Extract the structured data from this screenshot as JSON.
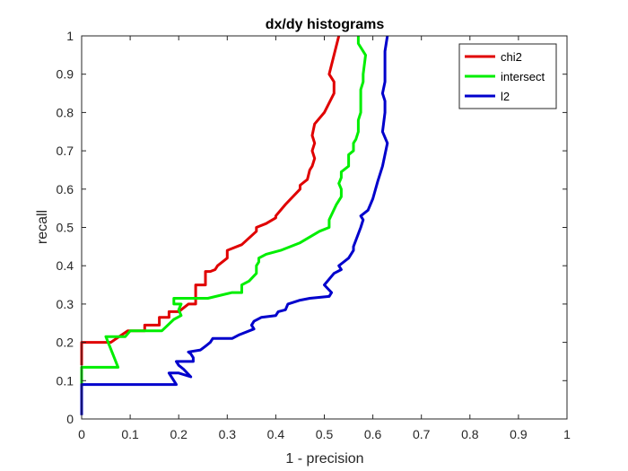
{
  "chart_data": {
    "type": "line",
    "title": "dx/dy histograms",
    "xlabel": "1 - precision",
    "ylabel": "recall",
    "xlim": [
      0,
      1
    ],
    "ylim": [
      0,
      1
    ],
    "xticks": [
      0,
      0.1,
      0.2,
      0.3,
      0.4,
      0.5,
      0.6,
      0.7,
      0.8,
      0.9,
      1
    ],
    "yticks": [
      0,
      0.1,
      0.2,
      0.3,
      0.4,
      0.5,
      0.6,
      0.7,
      0.8,
      0.9,
      1
    ],
    "xtick_labels": [
      "0",
      "0.1",
      "0.2",
      "0.3",
      "0.4",
      "0.5",
      "0.6",
      "0.7",
      "0.8",
      "0.9",
      "1"
    ],
    "ytick_labels": [
      "0",
      "0.1",
      "0.2",
      "0.3",
      "0.4",
      "0.5",
      "0.6",
      "0.7",
      "0.8",
      "0.9",
      "1"
    ],
    "grid": false,
    "legend_position": "top-right",
    "series": [
      {
        "name": "chi2",
        "color": "#e00000",
        "points": [
          [
            0,
            0.14
          ],
          [
            0,
            0.2
          ],
          [
            0.06,
            0.2
          ],
          [
            0.095,
            0.23
          ],
          [
            0.13,
            0.23
          ],
          [
            0.13,
            0.245
          ],
          [
            0.16,
            0.245
          ],
          [
            0.16,
            0.265
          ],
          [
            0.18,
            0.265
          ],
          [
            0.18,
            0.28
          ],
          [
            0.2,
            0.28
          ],
          [
            0.22,
            0.3
          ],
          [
            0.235,
            0.3
          ],
          [
            0.235,
            0.35
          ],
          [
            0.255,
            0.35
          ],
          [
            0.255,
            0.385
          ],
          [
            0.265,
            0.385
          ],
          [
            0.275,
            0.39
          ],
          [
            0.28,
            0.4
          ],
          [
            0.3,
            0.42
          ],
          [
            0.3,
            0.44
          ],
          [
            0.33,
            0.455
          ],
          [
            0.36,
            0.49
          ],
          [
            0.36,
            0.5
          ],
          [
            0.38,
            0.51
          ],
          [
            0.4,
            0.525
          ],
          [
            0.4,
            0.53
          ],
          [
            0.42,
            0.56
          ],
          [
            0.45,
            0.6
          ],
          [
            0.45,
            0.61
          ],
          [
            0.465,
            0.625
          ],
          [
            0.47,
            0.65
          ],
          [
            0.475,
            0.66
          ],
          [
            0.48,
            0.68
          ],
          [
            0.475,
            0.7
          ],
          [
            0.48,
            0.72
          ],
          [
            0.475,
            0.74
          ],
          [
            0.48,
            0.77
          ],
          [
            0.5,
            0.8
          ],
          [
            0.52,
            0.85
          ],
          [
            0.52,
            0.88
          ],
          [
            0.51,
            0.9
          ],
          [
            0.52,
            0.95
          ],
          [
            0.53,
            1.0
          ]
        ]
      },
      {
        "name": "intersect",
        "color": "#00ee00",
        "points": [
          [
            0,
            0.09
          ],
          [
            0,
            0.135
          ],
          [
            0.075,
            0.135
          ],
          [
            0.05,
            0.215
          ],
          [
            0.09,
            0.215
          ],
          [
            0.1,
            0.23
          ],
          [
            0.165,
            0.23
          ],
          [
            0.19,
            0.26
          ],
          [
            0.205,
            0.27
          ],
          [
            0.2,
            0.285
          ],
          [
            0.205,
            0.3
          ],
          [
            0.19,
            0.3
          ],
          [
            0.19,
            0.315
          ],
          [
            0.26,
            0.315
          ],
          [
            0.31,
            0.33
          ],
          [
            0.33,
            0.33
          ],
          [
            0.33,
            0.35
          ],
          [
            0.345,
            0.36
          ],
          [
            0.36,
            0.38
          ],
          [
            0.36,
            0.4
          ],
          [
            0.365,
            0.41
          ],
          [
            0.365,
            0.42
          ],
          [
            0.38,
            0.43
          ],
          [
            0.41,
            0.44
          ],
          [
            0.45,
            0.46
          ],
          [
            0.49,
            0.49
          ],
          [
            0.51,
            0.5
          ],
          [
            0.51,
            0.52
          ],
          [
            0.525,
            0.56
          ],
          [
            0.535,
            0.58
          ],
          [
            0.535,
            0.6
          ],
          [
            0.53,
            0.615
          ],
          [
            0.535,
            0.63
          ],
          [
            0.535,
            0.645
          ],
          [
            0.55,
            0.66
          ],
          [
            0.55,
            0.69
          ],
          [
            0.56,
            0.7
          ],
          [
            0.56,
            0.72
          ],
          [
            0.565,
            0.73
          ],
          [
            0.57,
            0.75
          ],
          [
            0.57,
            0.78
          ],
          [
            0.575,
            0.8
          ],
          [
            0.575,
            0.83
          ],
          [
            0.575,
            0.86
          ],
          [
            0.58,
            0.88
          ],
          [
            0.58,
            0.9
          ],
          [
            0.585,
            0.95
          ],
          [
            0.57,
            0.98
          ],
          [
            0.57,
            1.0
          ]
        ]
      },
      {
        "name": "l2",
        "color": "#0000cc",
        "points": [
          [
            0,
            0.01
          ],
          [
            0,
            0.09
          ],
          [
            0.195,
            0.09
          ],
          [
            0.18,
            0.12
          ],
          [
            0.2,
            0.12
          ],
          [
            0.225,
            0.11
          ],
          [
            0.21,
            0.13
          ],
          [
            0.2,
            0.14
          ],
          [
            0.195,
            0.15
          ],
          [
            0.23,
            0.15
          ],
          [
            0.23,
            0.16
          ],
          [
            0.225,
            0.17
          ],
          [
            0.22,
            0.175
          ],
          [
            0.245,
            0.18
          ],
          [
            0.255,
            0.19
          ],
          [
            0.265,
            0.2
          ],
          [
            0.27,
            0.21
          ],
          [
            0.29,
            0.21
          ],
          [
            0.31,
            0.21
          ],
          [
            0.325,
            0.22
          ],
          [
            0.355,
            0.235
          ],
          [
            0.35,
            0.245
          ],
          [
            0.355,
            0.255
          ],
          [
            0.37,
            0.265
          ],
          [
            0.4,
            0.27
          ],
          [
            0.405,
            0.28
          ],
          [
            0.42,
            0.285
          ],
          [
            0.425,
            0.3
          ],
          [
            0.45,
            0.31
          ],
          [
            0.47,
            0.315
          ],
          [
            0.51,
            0.32
          ],
          [
            0.515,
            0.33
          ],
          [
            0.5,
            0.35
          ],
          [
            0.52,
            0.38
          ],
          [
            0.535,
            0.39
          ],
          [
            0.53,
            0.4
          ],
          [
            0.55,
            0.42
          ],
          [
            0.56,
            0.44
          ],
          [
            0.56,
            0.45
          ],
          [
            0.575,
            0.5
          ],
          [
            0.58,
            0.52
          ],
          [
            0.575,
            0.53
          ],
          [
            0.59,
            0.545
          ],
          [
            0.6,
            0.575
          ],
          [
            0.61,
            0.62
          ],
          [
            0.62,
            0.66
          ],
          [
            0.63,
            0.72
          ],
          [
            0.62,
            0.75
          ],
          [
            0.625,
            0.8
          ],
          [
            0.625,
            0.83
          ],
          [
            0.62,
            0.85
          ],
          [
            0.625,
            0.88
          ],
          [
            0.625,
            0.92
          ],
          [
            0.625,
            0.96
          ],
          [
            0.63,
            1.0
          ]
        ]
      }
    ]
  }
}
